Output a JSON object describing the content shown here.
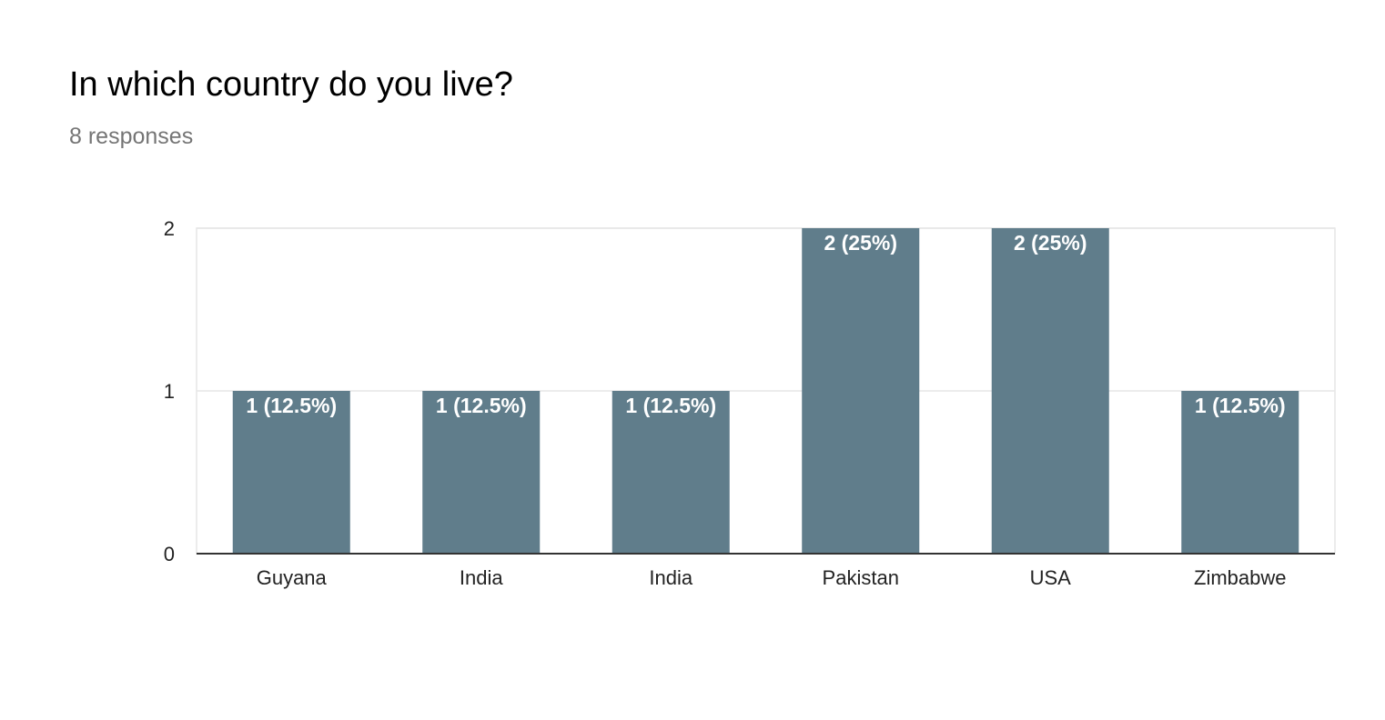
{
  "question": {
    "title": "In which country do you live?",
    "responses": "8 responses"
  },
  "colors": {
    "bar": "#607d8b",
    "grid": "#e6e6e6",
    "axis": "#333333"
  },
  "chart_data": {
    "type": "bar",
    "categories": [
      "Guyana",
      "India",
      "India",
      "Pakistan",
      "USA",
      "Zimbabwe"
    ],
    "values": [
      1,
      1,
      1,
      2,
      2,
      1
    ],
    "data_labels": [
      "1 (12.5%)",
      "1 (12.5%)",
      "1 (12.5%)",
      "2 (25%)",
      "2 (25%)",
      "1 (12.5%)"
    ],
    "yticks": [
      0,
      1,
      2
    ],
    "ylim": [
      0,
      2
    ],
    "grid": true,
    "legend": "none"
  }
}
